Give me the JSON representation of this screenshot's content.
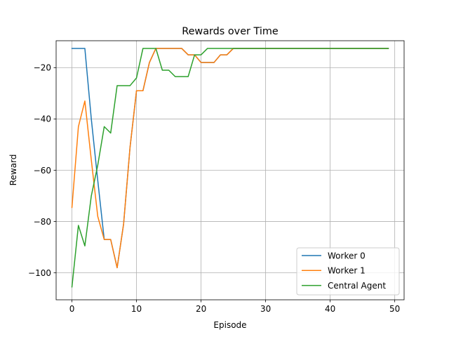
{
  "chart_data": {
    "type": "line",
    "title": "Rewards over Time",
    "xlabel": "Episode",
    "ylabel": "Reward",
    "xlim": [
      -2.45,
      51.45
    ],
    "ylim": [
      -110.5,
      -9.5
    ],
    "xticks": [
      0,
      10,
      20,
      30,
      40,
      50
    ],
    "yticks": [
      -100,
      -80,
      -60,
      -40,
      -20
    ],
    "ytick_labels": [
      "−100",
      "−80",
      "−60",
      "−40",
      "−20"
    ],
    "grid": true,
    "legend_position": "lower-right",
    "x": [
      0,
      1,
      2,
      3,
      4,
      5,
      6,
      7,
      8,
      9,
      10,
      11,
      12,
      13,
      14,
      15,
      16,
      17,
      18,
      19,
      20,
      21,
      22,
      23,
      24,
      25,
      26,
      27,
      28,
      29,
      30,
      31,
      32,
      33,
      34,
      35,
      36,
      37,
      38,
      39,
      40,
      41,
      42,
      43,
      44,
      45,
      46,
      47,
      48,
      49
    ],
    "series": [
      {
        "name": "Worker 0",
        "color": "#1f77b4",
        "values": [
          -12.5,
          -12.5,
          -12.5,
          -40,
          -64,
          -87,
          -87,
          -98,
          -81,
          -51,
          -29,
          -29,
          -18,
          -12.5,
          -12.5,
          -12.5,
          -12.5,
          -12.5,
          -15,
          -15,
          -18,
          -18,
          -18,
          -15,
          -15,
          -12.5,
          -12.5,
          -12.5,
          -12.5,
          -12.5,
          -12.5,
          -12.5,
          -12.5,
          -12.5,
          -12.5,
          -12.5,
          -12.5,
          -12.5,
          -12.5,
          -12.5,
          -12.5,
          -12.5,
          -12.5,
          -12.5,
          -12.5,
          -12.5,
          -12.5,
          -12.5,
          -12.5,
          -12.5
        ]
      },
      {
        "name": "Worker 1",
        "color": "#ff7f0e",
        "values": [
          -74.5,
          -43,
          -33,
          -56,
          -78,
          -87,
          -87,
          -98,
          -81,
          -51,
          -29,
          -29,
          -18,
          -12.5,
          -12.5,
          -12.5,
          -12.5,
          -12.5,
          -15,
          -15,
          -18,
          -18,
          -18,
          -15,
          -15,
          -12.5,
          -12.5,
          -12.5,
          -12.5,
          -12.5,
          -12.5,
          -12.5,
          -12.5,
          -12.5,
          -12.5,
          -12.5,
          -12.5,
          -12.5,
          -12.5,
          -12.5,
          -12.5,
          -12.5,
          -12.5,
          -12.5,
          -12.5,
          -12.5,
          -12.5,
          -12.5,
          -12.5,
          -12.5
        ]
      },
      {
        "name": "Central Agent",
        "color": "#2ca02c",
        "values": [
          -105.5,
          -81.5,
          -89.5,
          -70,
          -58,
          -43,
          -45.5,
          -27,
          -27,
          -27,
          -24,
          -12.5,
          -12.5,
          -12.5,
          -21,
          -21,
          -23.5,
          -23.5,
          -23.5,
          -15,
          -15,
          -12.5,
          -12.5,
          -12.5,
          -12.5,
          -12.5,
          -12.5,
          -12.5,
          -12.5,
          -12.5,
          -12.5,
          -12.5,
          -12.5,
          -12.5,
          -12.5,
          -12.5,
          -12.5,
          -12.5,
          -12.5,
          -12.5,
          -12.5,
          -12.5,
          -12.5,
          -12.5,
          -12.5,
          -12.5,
          -12.5,
          -12.5,
          -12.5,
          -12.5
        ]
      }
    ]
  }
}
